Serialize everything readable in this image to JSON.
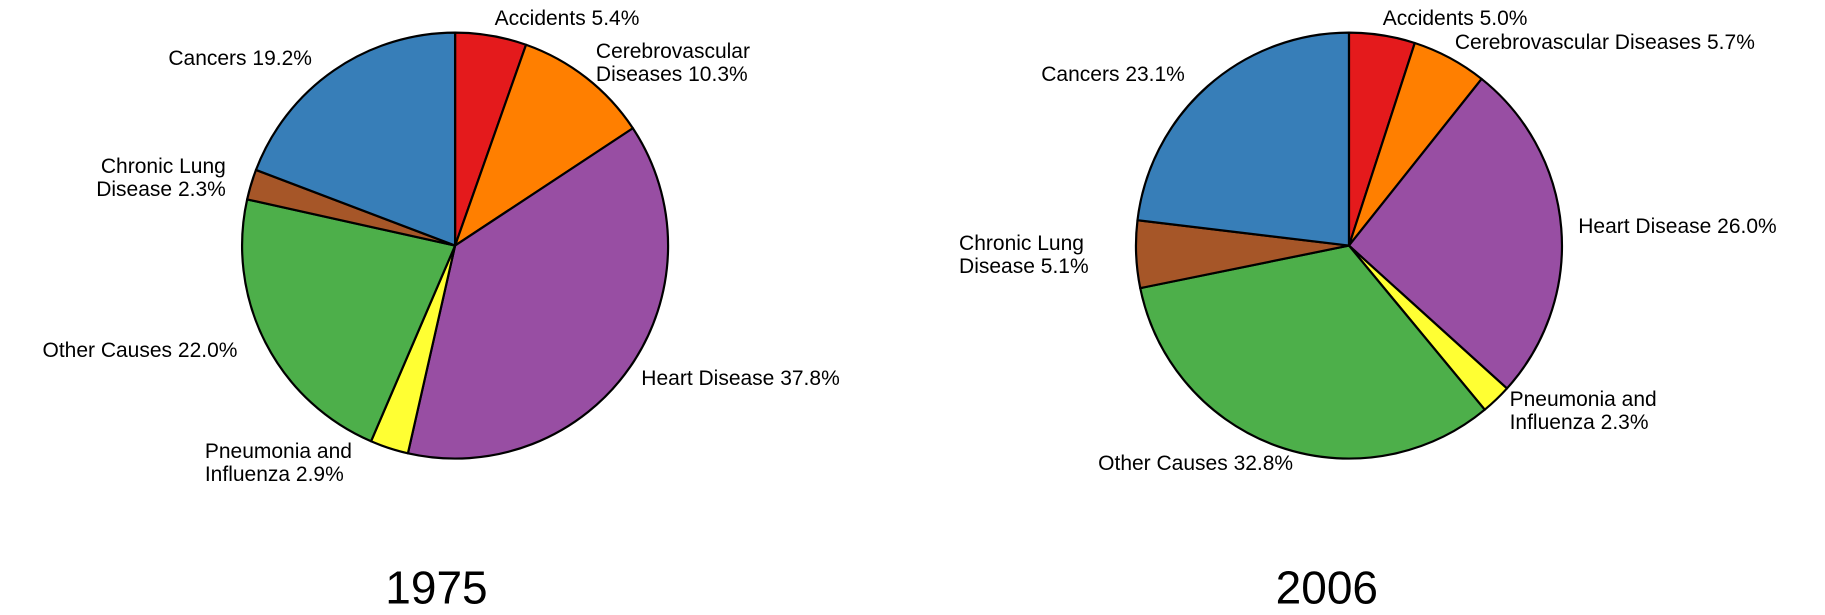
{
  "chart_data": [
    {
      "type": "pie",
      "title": "1975",
      "categories": [
        "Accidents",
        "Cerebrovascular Diseases",
        "Heart Disease",
        "Pneumonia and Influenza",
        "Other Causes",
        "Chronic Lung Disease",
        "Cancers"
      ],
      "values": [
        5.4,
        10.3,
        37.8,
        2.9,
        22.0,
        2.3,
        19.2
      ],
      "value_labels": [
        "5.4%",
        "10.3%",
        "37.8%",
        "2.9%",
        "22.0%",
        "2.3%",
        "19.2%"
      ],
      "colors": [
        "#e41a1c",
        "#ff7f00",
        "#984ea3",
        "#ffff33",
        "#4daf4a",
        "#a65628",
        "#377eb8"
      ]
    },
    {
      "type": "pie",
      "title": "2006",
      "categories": [
        "Accidents",
        "Cerebrovascular Diseases",
        "Heart Disease",
        "Pneumonia and Influenza",
        "Other Causes",
        "Chronic Lung Disease",
        "Cancers"
      ],
      "values": [
        5.0,
        5.7,
        26.0,
        2.3,
        32.8,
        5.1,
        23.1
      ],
      "value_labels": [
        "5.0%",
        "5.7%",
        "26.0%",
        "2.3%",
        "32.8%",
        "5.1%",
        "23.1%"
      ],
      "colors": [
        "#e41a1c",
        "#ff7f00",
        "#984ea3",
        "#ffff33",
        "#4daf4a",
        "#a65628",
        "#377eb8"
      ]
    }
  ]
}
